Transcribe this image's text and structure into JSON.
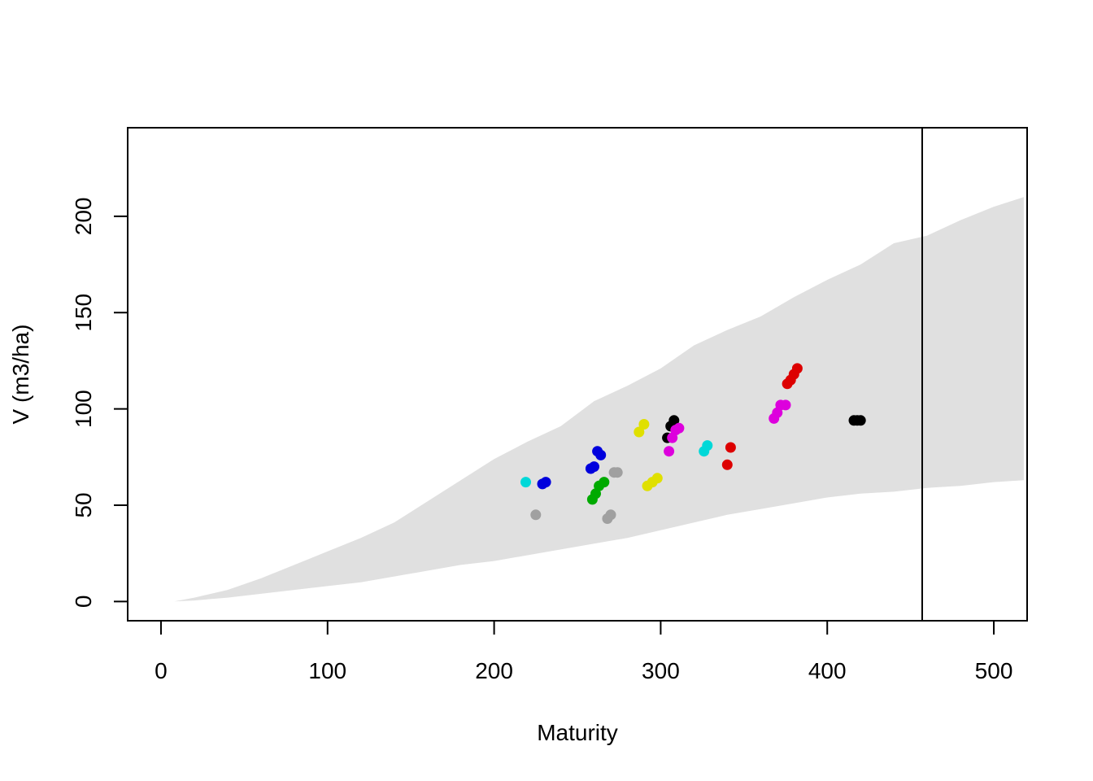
{
  "chart_data": {
    "type": "scatter",
    "title": "",
    "xlabel": "Maturity",
    "ylabel": "V (m3/ha)",
    "xlim": [
      -20,
      520
    ],
    "ylim": [
      -10,
      246
    ],
    "x_ticks": [
      0,
      100,
      200,
      300,
      400,
      500
    ],
    "y_ticks": [
      0,
      50,
      100,
      150,
      200
    ],
    "x_tick_labels": [
      "0",
      "100",
      "200",
      "300",
      "400",
      "500"
    ],
    "y_tick_labels": [
      "0",
      "50",
      "100",
      "150",
      "200"
    ],
    "grid": false,
    "vertical_line_x": 457,
    "band": {
      "color": "#e0e0e0",
      "x": [
        8,
        20,
        40,
        60,
        80,
        100,
        120,
        140,
        160,
        180,
        200,
        220,
        240,
        260,
        280,
        300,
        320,
        340,
        360,
        380,
        400,
        420,
        440,
        460,
        480,
        500,
        518
      ],
      "lower": [
        0,
        0.5,
        2,
        4,
        6,
        8,
        10,
        13,
        16,
        19,
        21,
        24,
        27,
        30,
        33,
        37,
        41,
        45,
        48,
        51,
        54,
        56,
        57,
        59,
        60,
        62,
        63
      ],
      "upper": [
        0,
        2,
        6,
        12,
        19,
        26,
        33,
        41,
        52,
        63,
        74,
        83,
        91,
        104,
        112,
        121,
        133,
        141,
        148,
        158,
        167,
        175,
        186,
        190,
        198,
        205,
        210
      ]
    },
    "series": [
      {
        "color": "#00d8d8",
        "points": [
          [
            219,
            62
          ],
          [
            326,
            78
          ],
          [
            328,
            81
          ]
        ]
      },
      {
        "color": "#0000dd",
        "points": [
          [
            229,
            61
          ],
          [
            231,
            62
          ],
          [
            258,
            69
          ],
          [
            260,
            70
          ],
          [
            262,
            78
          ],
          [
            264,
            76
          ]
        ]
      },
      {
        "color": "#a0a0a0",
        "points": [
          [
            225,
            45
          ],
          [
            268,
            43
          ],
          [
            270,
            45
          ],
          [
            272,
            67
          ],
          [
            274,
            67
          ]
        ]
      },
      {
        "color": "#00aa00",
        "points": [
          [
            259,
            53
          ],
          [
            261,
            56
          ],
          [
            263,
            60
          ],
          [
            266,
            62
          ]
        ]
      },
      {
        "color": "#e0e000",
        "points": [
          [
            287,
            88
          ],
          [
            290,
            92
          ],
          [
            292,
            60
          ],
          [
            295,
            62
          ],
          [
            298,
            64
          ]
        ]
      },
      {
        "color": "#000000",
        "points": [
          [
            304,
            85
          ],
          [
            306,
            91
          ],
          [
            308,
            94
          ],
          [
            416,
            94
          ],
          [
            418,
            94
          ],
          [
            420,
            94
          ]
        ]
      },
      {
        "color": "#dd00dd",
        "points": [
          [
            305,
            78
          ],
          [
            307,
            85
          ],
          [
            309,
            89
          ],
          [
            311,
            90
          ],
          [
            368,
            95
          ],
          [
            370,
            98
          ],
          [
            372,
            102
          ],
          [
            375,
            102
          ]
        ]
      },
      {
        "color": "#dd0000",
        "points": [
          [
            340,
            71
          ],
          [
            342,
            80
          ],
          [
            376,
            113
          ],
          [
            378,
            115
          ],
          [
            380,
            118
          ],
          [
            382,
            121
          ]
        ]
      }
    ]
  }
}
